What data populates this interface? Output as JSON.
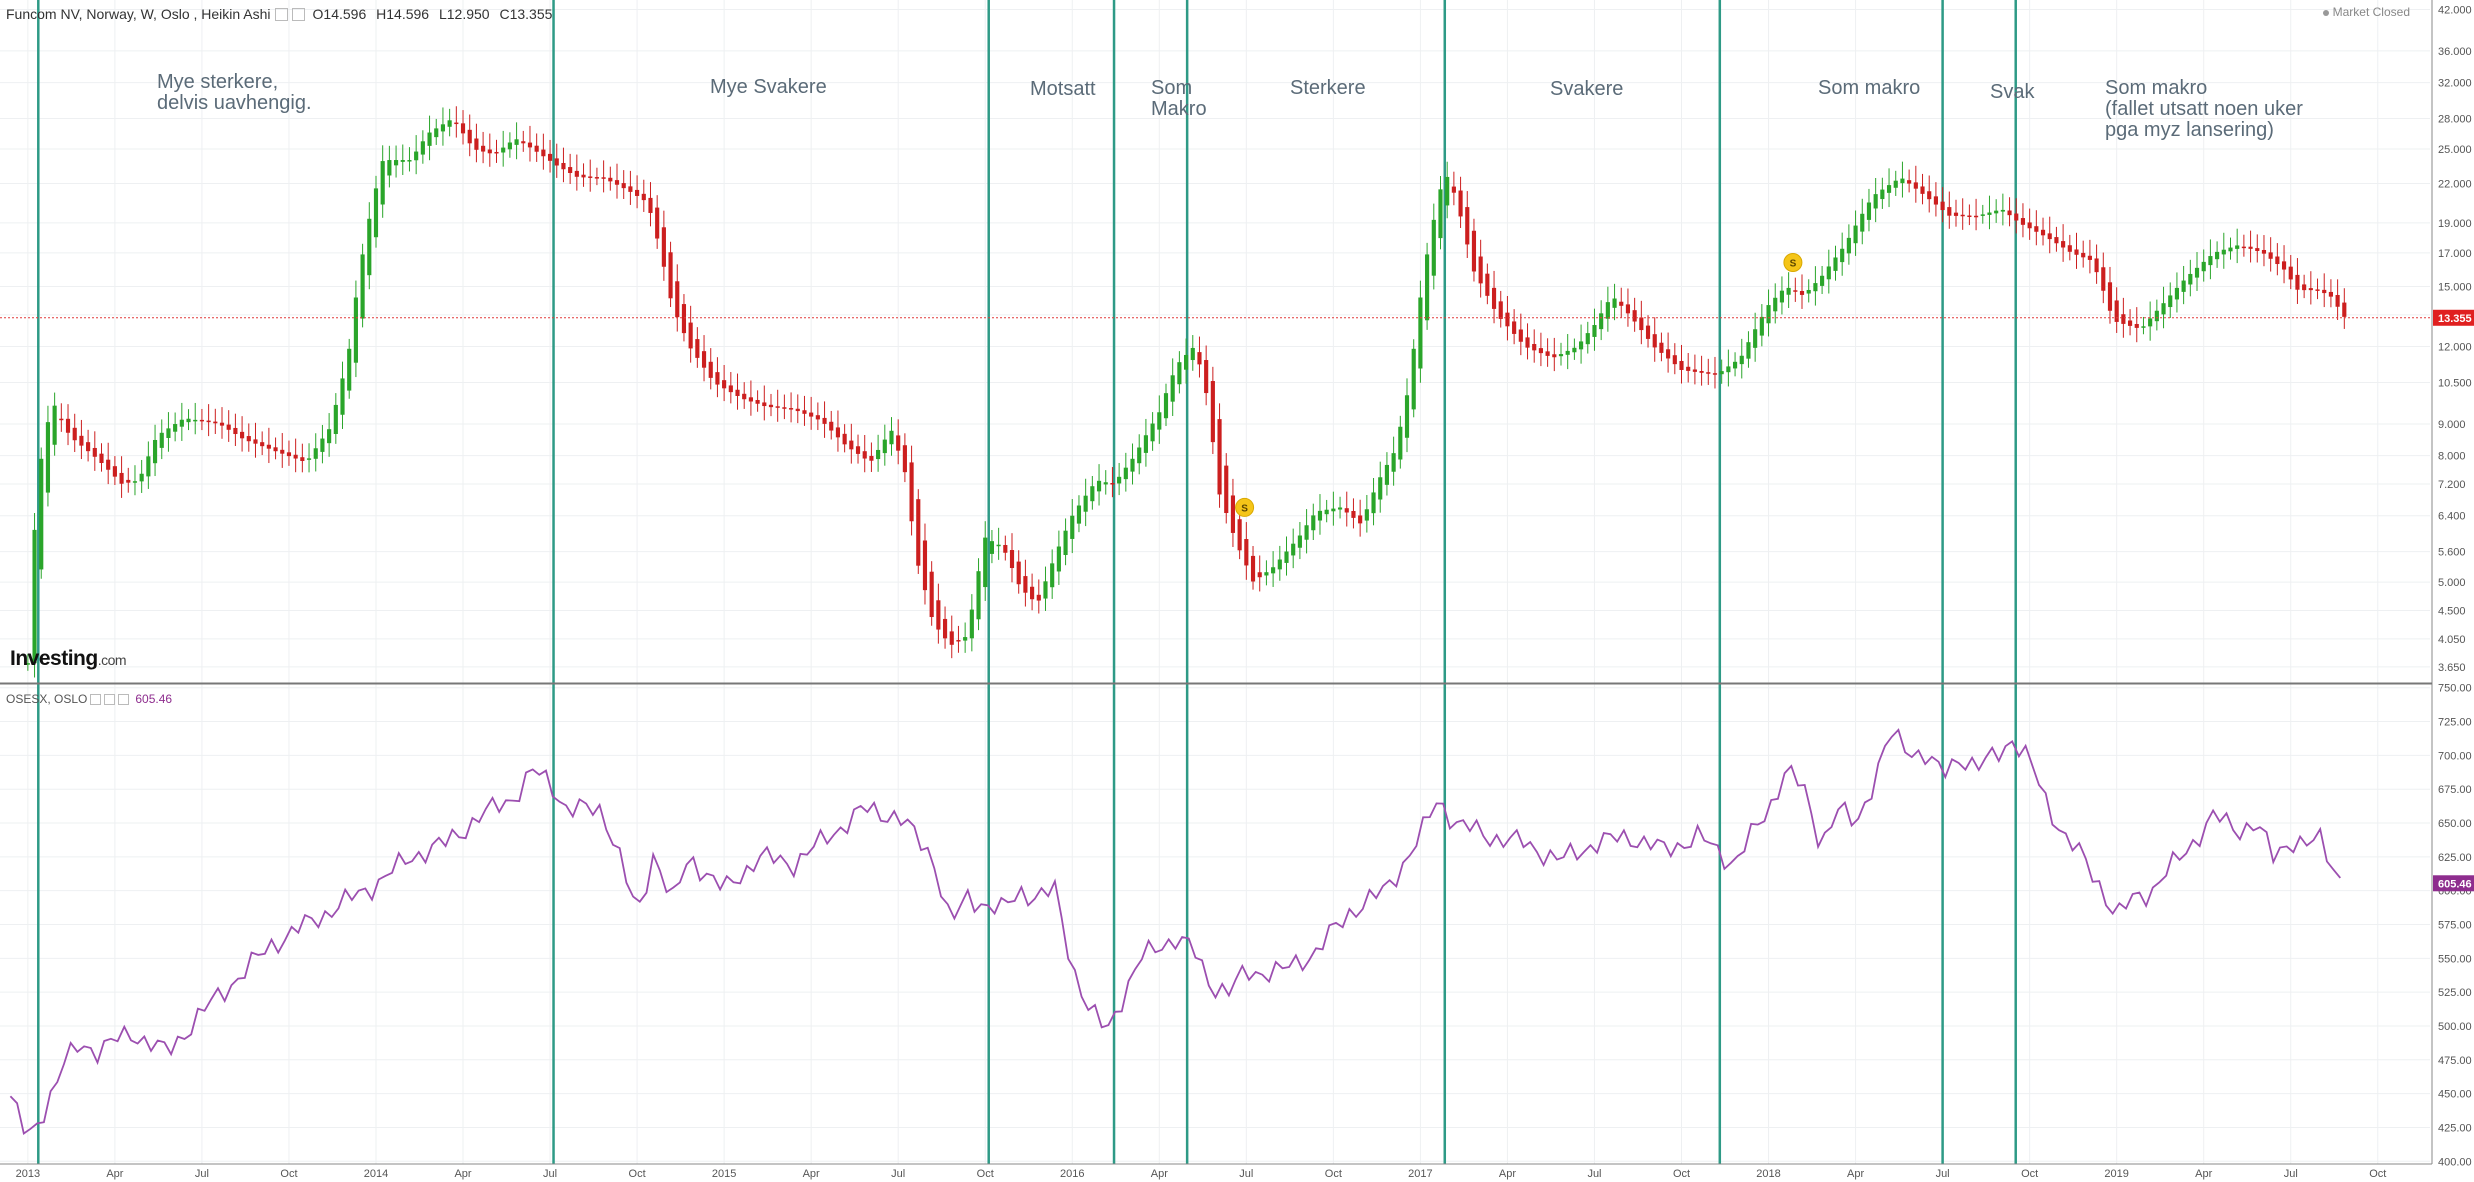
{
  "header": {
    "title": "Funcom NV, Norway, W, Oslo , Heikin Ashi",
    "ohlc": {
      "open": "O14.596",
      "high": "H14.596",
      "low": "L12.950",
      "close": "C13.355"
    },
    "market_status": "Market Closed"
  },
  "sub_header": {
    "title": "OSESX, OSLO",
    "value": "605.46"
  },
  "logo": {
    "main": "Investing",
    "suffix": ".com"
  },
  "annotations": [
    {
      "text": "Mye sterkere,\ndelvis uavhengig."
    },
    {
      "text": "Mye Svakere"
    },
    {
      "text": "Motsatt"
    },
    {
      "text": "Som\nMakro"
    },
    {
      "text": "Sterkere"
    },
    {
      "text": "Svakere"
    },
    {
      "text": "Som makro"
    },
    {
      "text": "Svak"
    },
    {
      "text": "Som makro\n(fallet utsatt noen uker\npga myz lansering)"
    }
  ],
  "colors": {
    "up": "#2aa52a",
    "down": "#cc1f1f",
    "index_line": "#9c4fb0",
    "separator": "#2e9a86",
    "price_line": "#e03a3a",
    "grid": "#eef0f2"
  },
  "chart_data": [
    {
      "type": "candlestick",
      "style": "Heikin Ashi",
      "title": "Funcom NV, Norway, W, Oslo , Heikin Ashi",
      "x_unit": "years since 2013-01-01",
      "xlim": [
        -0.08,
        6.9
      ],
      "x_ticks": [
        {
          "x": 0.0,
          "label": "2013"
        },
        {
          "x": 0.25,
          "label": "Apr"
        },
        {
          "x": 0.5,
          "label": "Jul"
        },
        {
          "x": 0.75,
          "label": "Oct"
        },
        {
          "x": 1.0,
          "label": "2014"
        },
        {
          "x": 1.25,
          "label": "Apr"
        },
        {
          "x": 1.5,
          "label": "Jul"
        },
        {
          "x": 1.75,
          "label": "Oct"
        },
        {
          "x": 2.0,
          "label": "2015"
        },
        {
          "x": 2.25,
          "label": "Apr"
        },
        {
          "x": 2.5,
          "label": "Jul"
        },
        {
          "x": 2.75,
          "label": "Oct"
        },
        {
          "x": 3.0,
          "label": "2016"
        },
        {
          "x": 3.25,
          "label": "Apr"
        },
        {
          "x": 3.5,
          "label": "Jul"
        },
        {
          "x": 3.75,
          "label": "Oct"
        },
        {
          "x": 4.0,
          "label": "2017"
        },
        {
          "x": 4.25,
          "label": "Apr"
        },
        {
          "x": 4.5,
          "label": "Jul"
        },
        {
          "x": 4.75,
          "label": "Oct"
        },
        {
          "x": 5.0,
          "label": "2018"
        },
        {
          "x": 5.25,
          "label": "Apr"
        },
        {
          "x": 5.5,
          "label": "Jul"
        },
        {
          "x": 5.75,
          "label": "Oct"
        },
        {
          "x": 6.0,
          "label": "2019"
        },
        {
          "x": 6.25,
          "label": "Apr"
        },
        {
          "x": 6.5,
          "label": "Jul"
        },
        {
          "x": 6.75,
          "label": "Oct"
        }
      ],
      "y_scale": "log",
      "ylim": [
        3.45,
        43.5
      ],
      "y_ticks": [
        "3.650",
        "4.050",
        "4.500",
        "5.000",
        "5.600",
        "6.400",
        "7.200",
        "8.000",
        "9.000",
        "10.500",
        "12.000",
        "13.500",
        "15.000",
        "17.000",
        "19.000",
        "22.000",
        "25.000",
        "28.000",
        "32.000",
        "36.000",
        "42.000"
      ],
      "last_price": 13.355,
      "last_price_label": "13.355",
      "close_anchors": [
        [
          0.0,
          3.7
        ],
        [
          0.03,
          7.4
        ],
        [
          0.07,
          9.8
        ],
        [
          0.12,
          8.6
        ],
        [
          0.2,
          7.9
        ],
        [
          0.27,
          7.2
        ],
        [
          0.32,
          7.3
        ],
        [
          0.37,
          8.6
        ],
        [
          0.45,
          9.2
        ],
        [
          0.55,
          9.0
        ],
        [
          0.62,
          8.5
        ],
        [
          0.72,
          8.1
        ],
        [
          0.8,
          7.8
        ],
        [
          0.87,
          8.9
        ],
        [
          0.92,
          11.5
        ],
        [
          0.97,
          18
        ],
        [
          1.02,
          24
        ],
        [
          1.1,
          24
        ],
        [
          1.15,
          26.5
        ],
        [
          1.22,
          28
        ],
        [
          1.28,
          25
        ],
        [
          1.34,
          24.5
        ],
        [
          1.4,
          26
        ],
        [
          1.45,
          25
        ],
        [
          1.52,
          23.5
        ],
        [
          1.58,
          22.5
        ],
        [
          1.65,
          22.5
        ],
        [
          1.72,
          21.5
        ],
        [
          1.78,
          20.5
        ],
        [
          1.85,
          14
        ],
        [
          1.9,
          12
        ],
        [
          1.97,
          10.5
        ],
        [
          2.05,
          9.9
        ],
        [
          2.12,
          9.6
        ],
        [
          2.2,
          9.5
        ],
        [
          2.28,
          9.1
        ],
        [
          2.35,
          8.3
        ],
        [
          2.42,
          7.8
        ],
        [
          2.48,
          8.8
        ],
        [
          2.52,
          7.5
        ],
        [
          2.55,
          5.5
        ],
        [
          2.6,
          4.3
        ],
        [
          2.65,
          3.95
        ],
        [
          2.7,
          4.1
        ],
        [
          2.75,
          5.9
        ],
        [
          2.8,
          5.7
        ],
        [
          2.85,
          4.9
        ],
        [
          2.9,
          4.6
        ],
        [
          2.95,
          5.5
        ],
        [
          3.0,
          6.4
        ],
        [
          3.07,
          7.3
        ],
        [
          3.12,
          7.2
        ],
        [
          3.18,
          8.0
        ],
        [
          3.25,
          9.4
        ],
        [
          3.3,
          11.2
        ],
        [
          3.35,
          12.0
        ],
        [
          3.38,
          10.5
        ],
        [
          3.42,
          7.0
        ],
        [
          3.47,
          5.8
        ],
        [
          3.52,
          5.0
        ],
        [
          3.58,
          5.3
        ],
        [
          3.65,
          5.9
        ],
        [
          3.7,
          6.5
        ],
        [
          3.77,
          6.6
        ],
        [
          3.83,
          6.2
        ],
        [
          3.88,
          7.3
        ],
        [
          3.93,
          8.2
        ],
        [
          3.97,
          10.5
        ],
        [
          4.02,
          17
        ],
        [
          4.07,
          23
        ],
        [
          4.1,
          21
        ],
        [
          4.15,
          16
        ],
        [
          4.22,
          13.5
        ],
        [
          4.3,
          12
        ],
        [
          4.38,
          11.5
        ],
        [
          4.45,
          12
        ],
        [
          4.5,
          13
        ],
        [
          4.55,
          14.5
        ],
        [
          4.6,
          13.5
        ],
        [
          4.67,
          12
        ],
        [
          4.75,
          11
        ],
        [
          4.85,
          10.8
        ],
        [
          4.92,
          11.5
        ],
        [
          5.0,
          14
        ],
        [
          5.05,
          15
        ],
        [
          5.1,
          14.5
        ],
        [
          5.15,
          15.5
        ],
        [
          5.22,
          17.5
        ],
        [
          5.3,
          21
        ],
        [
          5.38,
          22.5
        ],
        [
          5.45,
          21
        ],
        [
          5.52,
          19.5
        ],
        [
          5.6,
          19.5
        ],
        [
          5.67,
          20
        ],
        [
          5.72,
          19
        ],
        [
          5.8,
          18
        ],
        [
          5.87,
          17
        ],
        [
          5.93,
          16.5
        ],
        [
          5.99,
          13.2
        ],
        [
          6.07,
          12.8
        ],
        [
          6.13,
          14
        ],
        [
          6.2,
          15.5
        ],
        [
          6.28,
          17
        ],
        [
          6.35,
          17.5
        ],
        [
          6.42,
          17
        ],
        [
          6.48,
          16
        ],
        [
          6.52,
          14.8
        ],
        [
          6.58,
          14.8
        ],
        [
          6.62,
          14.4
        ],
        [
          6.65,
          13.4
        ]
      ],
      "separators_x": [
        0.03,
        1.51,
        2.76,
        3.12,
        3.33,
        4.07,
        4.86,
        5.5,
        5.71
      ]
    },
    {
      "type": "line",
      "title": "OSESX, OSLO",
      "series_value_label": "605.46",
      "xlim": [
        -0.08,
        6.9
      ],
      "ylim": [
        398,
        752
      ],
      "y_ticks": [
        "400.00",
        "425.00",
        "450.00",
        "475.00",
        "500.00",
        "525.00",
        "550.00",
        "575.00",
        "600.00",
        "625.00",
        "650.00",
        "675.00",
        "700.00",
        "725.00",
        "750.00"
      ],
      "last_value": 605.46,
      "anchors": [
        [
          -0.05,
          448
        ],
        [
          0.0,
          415
        ],
        [
          0.05,
          440
        ],
        [
          0.1,
          470
        ],
        [
          0.15,
          487
        ],
        [
          0.2,
          482
        ],
        [
          0.3,
          495
        ],
        [
          0.4,
          480
        ],
        [
          0.5,
          510
        ],
        [
          0.6,
          535
        ],
        [
          0.7,
          560
        ],
        [
          0.8,
          575
        ],
        [
          0.9,
          590
        ],
        [
          1.0,
          605
        ],
        [
          1.1,
          625
        ],
        [
          1.2,
          635
        ],
        [
          1.3,
          655
        ],
        [
          1.4,
          670
        ],
        [
          1.45,
          688
        ],
        [
          1.5,
          680
        ],
        [
          1.55,
          660
        ],
        [
          1.65,
          660
        ],
        [
          1.7,
          625
        ],
        [
          1.75,
          580
        ],
        [
          1.8,
          630
        ],
        [
          1.85,
          590
        ],
        [
          1.9,
          625
        ],
        [
          2.0,
          600
        ],
        [
          2.1,
          625
        ],
        [
          2.2,
          620
        ],
        [
          2.3,
          640
        ],
        [
          2.4,
          660
        ],
        [
          2.5,
          655
        ],
        [
          2.6,
          625
        ],
        [
          2.65,
          575
        ],
        [
          2.7,
          595
        ],
        [
          2.8,
          585
        ],
        [
          2.85,
          600
        ],
        [
          2.9,
          595
        ],
        [
          2.95,
          600
        ],
        [
          3.0,
          545
        ],
        [
          3.05,
          510
        ],
        [
          3.1,
          497
        ],
        [
          3.15,
          525
        ],
        [
          3.2,
          550
        ],
        [
          3.25,
          560
        ],
        [
          3.3,
          565
        ],
        [
          3.35,
          555
        ],
        [
          3.4,
          530
        ],
        [
          3.45,
          525
        ],
        [
          3.5,
          540
        ],
        [
          3.6,
          540
        ],
        [
          3.7,
          555
        ],
        [
          3.8,
          585
        ],
        [
          3.9,
          600
        ],
        [
          4.0,
          640
        ],
        [
          4.05,
          668
        ],
        [
          4.1,
          650
        ],
        [
          4.2,
          640
        ],
        [
          4.3,
          635
        ],
        [
          4.4,
          622
        ],
        [
          4.5,
          635
        ],
        [
          4.6,
          640
        ],
        [
          4.7,
          630
        ],
        [
          4.8,
          640
        ],
        [
          4.9,
          620
        ],
        [
          5.0,
          660
        ],
        [
          5.05,
          690
        ],
        [
          5.1,
          675
        ],
        [
          5.15,
          635
        ],
        [
          5.2,
          660
        ],
        [
          5.25,
          648
        ],
        [
          5.3,
          680
        ],
        [
          5.35,
          715
        ],
        [
          5.4,
          705
        ],
        [
          5.45,
          700
        ],
        [
          5.5,
          685
        ],
        [
          5.55,
          700
        ],
        [
          5.6,
          690
        ],
        [
          5.65,
          700
        ],
        [
          5.7,
          712
        ],
        [
          5.75,
          695
        ],
        [
          5.8,
          665
        ],
        [
          5.85,
          640
        ],
        [
          5.9,
          625
        ],
        [
          5.95,
          605
        ],
        [
          6.0,
          580
        ],
        [
          6.05,
          595
        ],
        [
          6.1,
          600
        ],
        [
          6.2,
          630
        ],
        [
          6.28,
          655
        ],
        [
          6.35,
          645
        ],
        [
          6.4,
          650
        ],
        [
          6.45,
          625
        ],
        [
          6.5,
          638
        ],
        [
          6.55,
          632
        ],
        [
          6.58,
          640
        ],
        [
          6.65,
          605
        ]
      ],
      "separators_x": [
        0.03,
        1.51,
        2.76,
        3.12,
        3.33,
        4.07,
        4.86,
        5.5,
        5.71
      ]
    }
  ]
}
